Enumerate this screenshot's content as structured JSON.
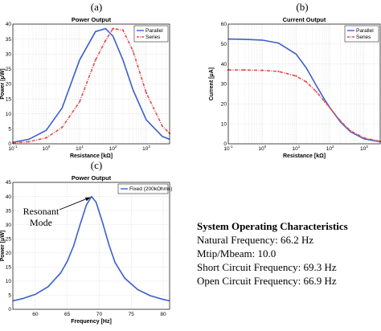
{
  "chart_data": [
    {
      "id": "a",
      "panel_letter": "(a)",
      "type": "line",
      "title": "Power Output",
      "xlabel": "Resistance [kΩ]",
      "ylabel": "Power [μW]",
      "xscale": "log",
      "xlim": [
        0.1,
        5000
      ],
      "ylim": [
        0,
        40
      ],
      "xticks": [
        {
          "base": "10",
          "exp": "-1",
          "v": 0.1
        },
        {
          "base": "10",
          "exp": "0",
          "v": 1
        },
        {
          "base": "10",
          "exp": "1",
          "v": 10
        },
        {
          "base": "10",
          "exp": "2",
          "v": 100
        },
        {
          "base": "10",
          "exp": "3",
          "v": 1000
        }
      ],
      "yticks": [
        "0",
        "5",
        "10",
        "15",
        "20",
        "25",
        "30",
        "35",
        "40"
      ],
      "grid": true,
      "legend_position": "top-right",
      "series": [
        {
          "name": "Parallel",
          "color": "#3a5fcd",
          "style": "solid",
          "x": [
            0.1,
            0.3,
            1,
            3,
            10,
            30,
            60,
            100,
            200,
            400,
            1000,
            3000,
            5000
          ],
          "y": [
            0.5,
            1.5,
            4.5,
            12,
            28,
            37.5,
            38.5,
            36,
            28,
            18,
            8,
            2.5,
            1.5
          ]
        },
        {
          "name": "Series",
          "color": "#e05050",
          "style": "dash-dot",
          "x": [
            0.1,
            0.3,
            1,
            3,
            10,
            30,
            60,
            100,
            200,
            400,
            1000,
            3000,
            5000
          ],
          "y": [
            0.3,
            0.7,
            2,
            5.5,
            14,
            28,
            34.5,
            38.5,
            38,
            31,
            17,
            6,
            3.5
          ]
        }
      ]
    },
    {
      "id": "b",
      "panel_letter": "(b)",
      "type": "line",
      "title": "Current Output",
      "xlabel": "Resistance [kΩ]",
      "ylabel": "Current [μA]",
      "xscale": "log",
      "xlim": [
        0.1,
        3000
      ],
      "ylim": [
        0,
        60
      ],
      "xticks": [
        {
          "base": "10",
          "exp": "-1",
          "v": 0.1
        },
        {
          "base": "10",
          "exp": "0",
          "v": 1
        },
        {
          "base": "10",
          "exp": "1",
          "v": 10
        },
        {
          "base": "10",
          "exp": "2",
          "v": 100
        },
        {
          "base": "10",
          "exp": "3",
          "v": 1000
        }
      ],
      "yticks": [
        "0",
        "10",
        "20",
        "30",
        "40",
        "50",
        "60"
      ],
      "grid": true,
      "legend_position": "top-right",
      "series": [
        {
          "name": "Parallel",
          "color": "#3a5fcd",
          "style": "solid",
          "x": [
            0.1,
            0.3,
            1,
            3,
            10,
            20,
            40,
            70,
            100,
            200,
            400,
            1000,
            3000
          ],
          "y": [
            52.5,
            52.4,
            52,
            50.5,
            45,
            38,
            29,
            22,
            18,
            11,
            6,
            2.5,
            1
          ]
        },
        {
          "name": "Series",
          "color": "#e05050",
          "style": "dash-dot",
          "x": [
            0.1,
            0.3,
            1,
            3,
            10,
            20,
            40,
            70,
            100,
            200,
            400,
            1000,
            3000
          ],
          "y": [
            37,
            37,
            36.8,
            36.3,
            34,
            31,
            26,
            21,
            18,
            11.5,
            6.5,
            3,
            1.2
          ]
        }
      ]
    },
    {
      "id": "c",
      "panel_letter": "(c)",
      "type": "line",
      "title": "Power Output",
      "xlabel": "Frequency [Hz]",
      "ylabel": "Power [μW]",
      "xscale": "linear",
      "xlim": [
        56.5,
        81
      ],
      "ylim": [
        0,
        45
      ],
      "xticks": [
        {
          "label": "60",
          "v": 60
        },
        {
          "label": "65",
          "v": 65
        },
        {
          "label": "70",
          "v": 70
        },
        {
          "label": "75",
          "v": 75
        },
        {
          "label": "80",
          "v": 80
        }
      ],
      "yticks": [
        "0",
        "5",
        "10",
        "15",
        "20",
        "25",
        "30",
        "35",
        "40",
        "45"
      ],
      "grid": true,
      "legend_position": "top-right",
      "annotation": {
        "line1": "Resonant",
        "line2": "Mode",
        "target_x": 68.8,
        "target_y": 40
      },
      "series": [
        {
          "name": "Fixed (200kOhms)",
          "color": "#3a5fcd",
          "style": "solid",
          "x": [
            56.5,
            58,
            60,
            62,
            64,
            65,
            66,
            67,
            68,
            68.8,
            69.5,
            70.5,
            71.5,
            72.5,
            74,
            76,
            78,
            80,
            81
          ],
          "y": [
            3,
            3.8,
            5.3,
            8,
            13,
            17,
            22.5,
            30,
            37,
            40,
            38,
            31,
            23,
            16.5,
            11,
            7,
            4.8,
            3.5,
            3
          ]
        }
      ]
    }
  ],
  "system": {
    "heading": "System Operating Characteristics",
    "lines": [
      "Natural Frequency: 66.2 Hz",
      "Mtip/Mbeam: 10.0",
      "Short Circuit Frequency: 69.3 Hz",
      "Open Circuit Frequency: 66.9 Hz"
    ]
  }
}
